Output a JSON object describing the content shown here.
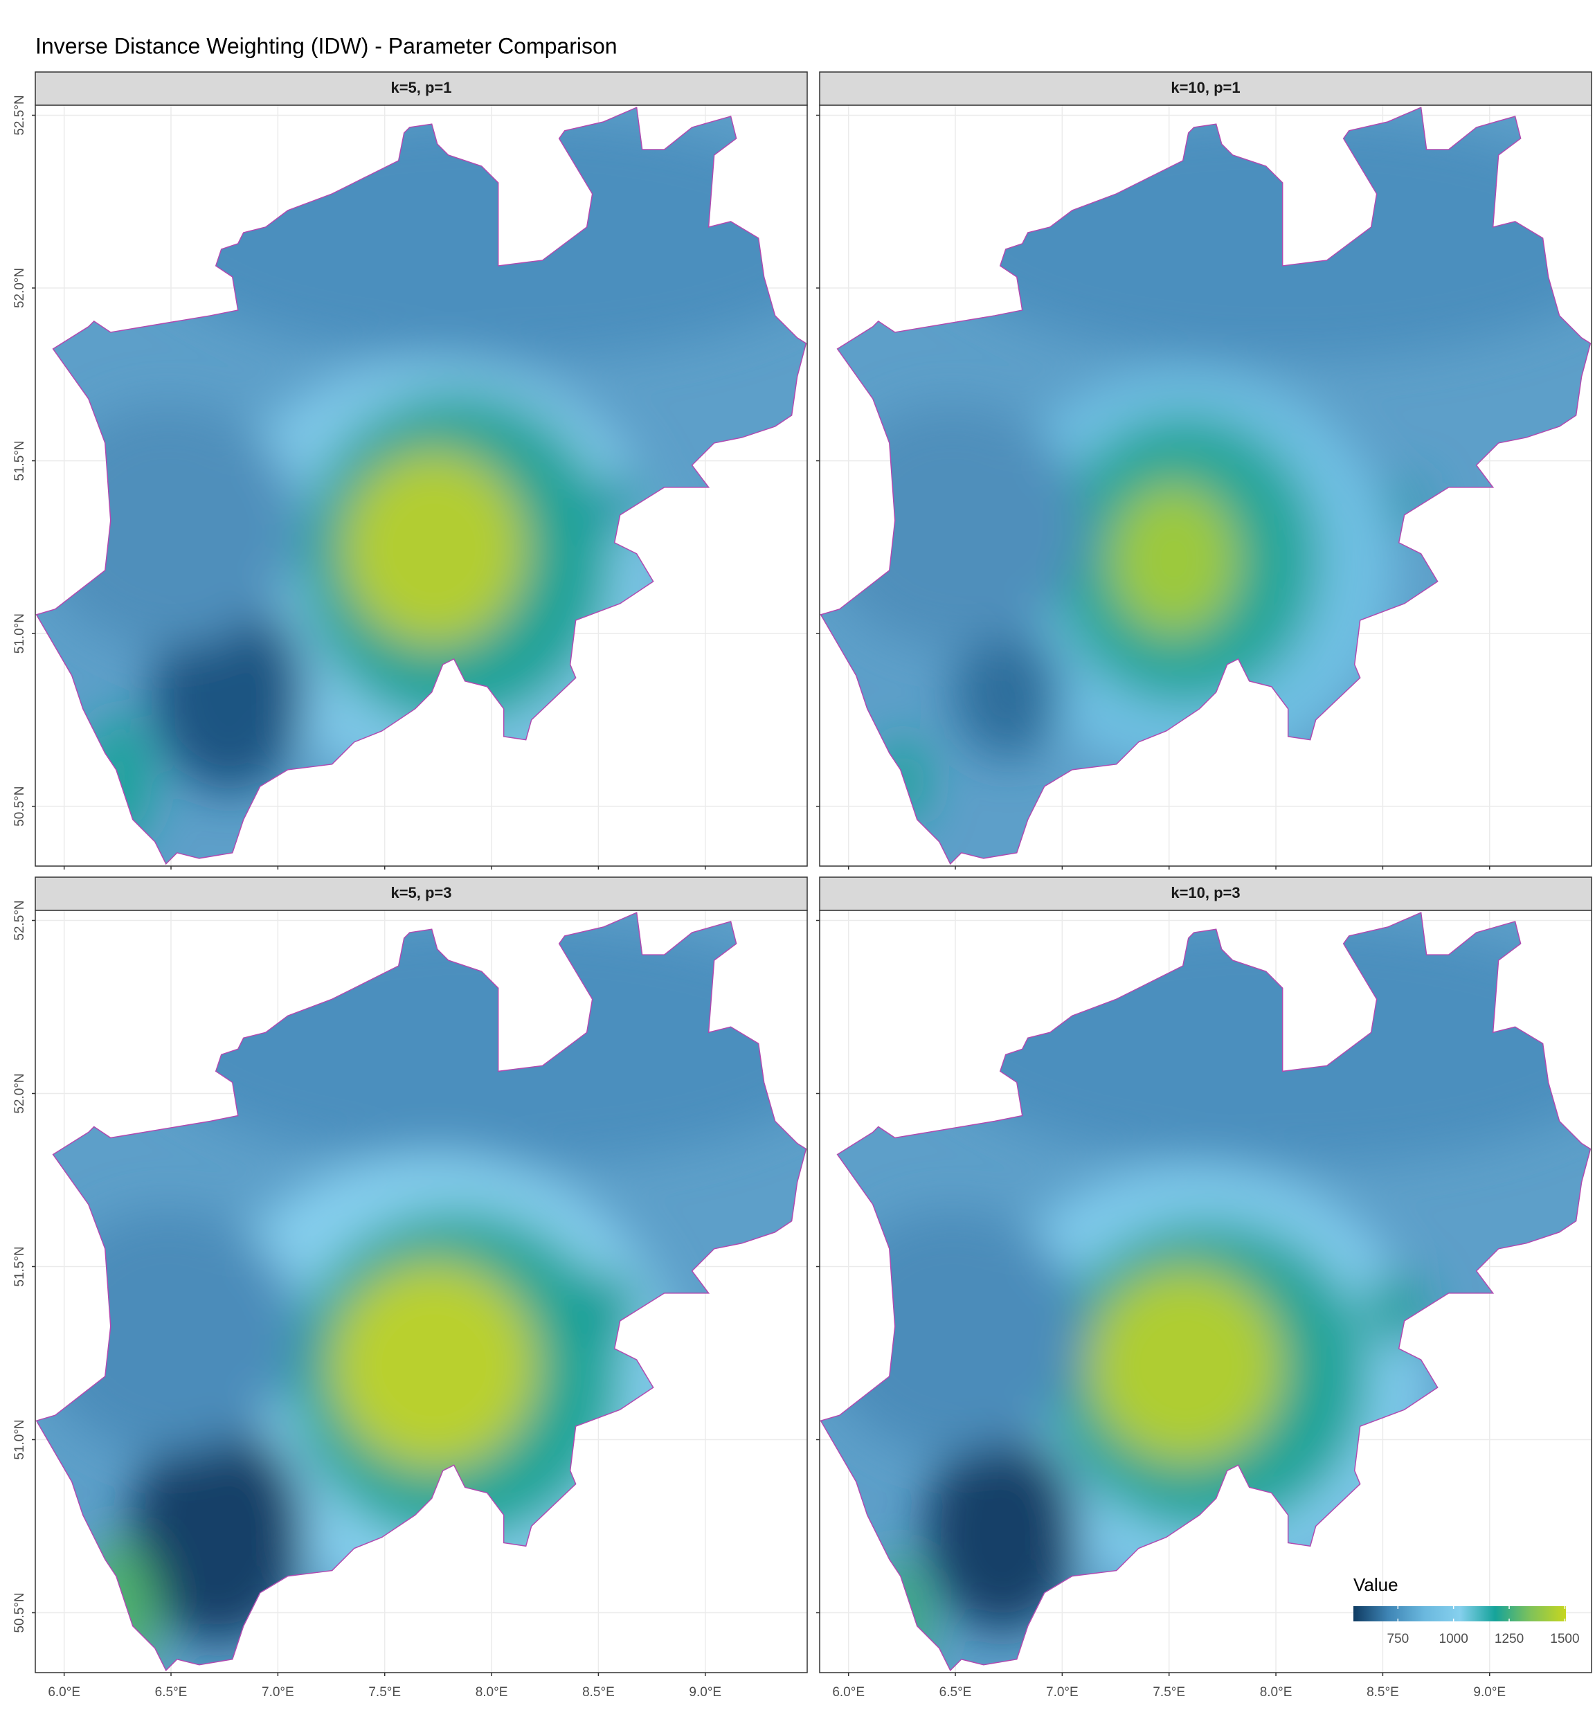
{
  "chart_data": {
    "type": "raster map",
    "title": "Inverse Distance Weighting (IDW) - Parameter Comparison",
    "facets": [
      "k=5, p=1",
      "k=10, p=1",
      "k=5, p=3",
      "k=10, p=3"
    ],
    "xlim": [
      5.865,
      9.477
    ],
    "ylim": [
      50.327,
      52.529
    ],
    "xticks": [
      {
        "value": 6,
        "label": "6.0°E"
      },
      {
        "value": 6.5,
        "label": "6.5°E"
      },
      {
        "value": 7,
        "label": "7.0°E"
      },
      {
        "value": 7.5,
        "label": "7.5°E"
      },
      {
        "value": 8,
        "label": "8.0°E"
      },
      {
        "value": 8.5,
        "label": "8.5°E"
      },
      {
        "value": 9,
        "label": "9.0°E"
      }
    ],
    "yticks": [
      {
        "value": 50.5,
        "label": "50.5°N"
      },
      {
        "value": 51,
        "label": "51.0°N"
      },
      {
        "value": 51.5,
        "label": "51.5°N"
      },
      {
        "value": 52,
        "label": "52.0°N"
      },
      {
        "value": 52.5,
        "label": "52.5°N"
      }
    ],
    "grid": true,
    "legend": {
      "title": "Value",
      "lim": [
        550,
        1505
      ],
      "ticks": [
        750,
        1000,
        1250,
        1500
      ],
      "colors": [
        "#0f3b62",
        "#3f86b6",
        "#6ab8de",
        "#86d0ee",
        "#15a39a",
        "#7fc25a",
        "#c6d61f"
      ]
    }
  }
}
